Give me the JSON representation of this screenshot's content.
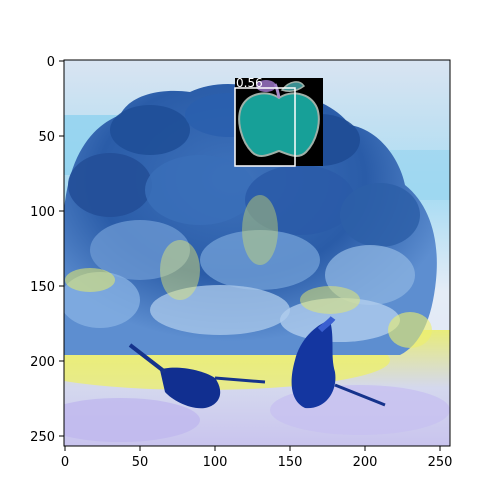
{
  "figure": {
    "x_ticks": [
      "0",
      "50",
      "100",
      "150",
      "200",
      "250"
    ],
    "y_ticks": [
      "0",
      "50",
      "100",
      "150",
      "200",
      "250"
    ]
  },
  "detection": {
    "score_label": "0.56",
    "icon": "apple-icon",
    "box_color": "#ffffff",
    "apple_fill": "#17a098"
  },
  "palette": {
    "sky": "#9fd8f0",
    "background": "#dfe8f4",
    "foliage_dark": "#1e4f9a",
    "foliage_mid": "#4a7fc4",
    "ground_yellow": "#f0ee60",
    "shadow": "#102e8c"
  }
}
